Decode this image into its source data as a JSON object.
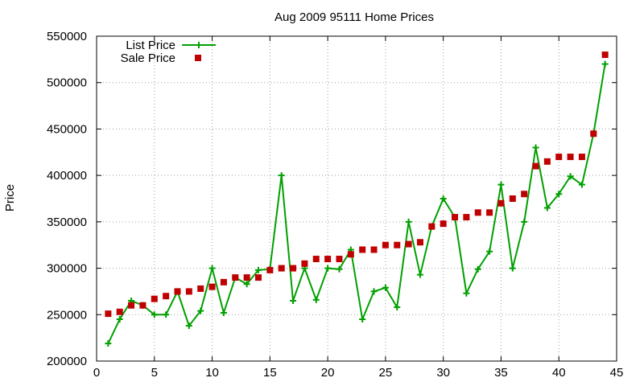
{
  "chart_data": {
    "type": "line",
    "title": "Aug 2009 95111 Home Prices",
    "xlabel": "",
    "ylabel": "Price",
    "xlim": [
      0,
      45
    ],
    "ylim": [
      200000,
      550000
    ],
    "xticks": [
      0,
      5,
      10,
      15,
      20,
      25,
      30,
      35,
      40,
      45
    ],
    "yticks": [
      200000,
      250000,
      300000,
      350000,
      400000,
      450000,
      500000,
      550000
    ],
    "grid": true,
    "legend": "top-left",
    "series": [
      {
        "name": "List Price",
        "style": "line+cross",
        "color": "#00a000",
        "x": [
          1,
          2,
          3,
          4,
          5,
          6,
          7,
          8,
          9,
          10,
          11,
          12,
          13,
          14,
          15,
          16,
          17,
          18,
          19,
          20,
          21,
          22,
          23,
          24,
          25,
          26,
          27,
          28,
          29,
          30,
          31,
          32,
          33,
          34,
          35,
          36,
          37,
          38,
          39,
          40,
          41,
          42,
          43,
          44
        ],
        "values": [
          219000,
          245000,
          265000,
          260000,
          250000,
          250000,
          275000,
          238000,
          254000,
          300000,
          252000,
          290000,
          283000,
          298000,
          299000,
          400000,
          265000,
          300000,
          266000,
          300000,
          299000,
          320000,
          245000,
          275000,
          279000,
          258000,
          350000,
          293000,
          345000,
          375000,
          355000,
          273000,
          299000,
          318000,
          390000,
          300000,
          350000,
          430000,
          365000,
          380000,
          399000,
          390000,
          445000,
          520000
        ]
      },
      {
        "name": "Sale Price",
        "style": "square",
        "color": "#c00000",
        "x": [
          1,
          2,
          3,
          4,
          5,
          6,
          7,
          8,
          9,
          10,
          11,
          12,
          13,
          14,
          15,
          16,
          17,
          18,
          19,
          20,
          21,
          22,
          23,
          24,
          25,
          26,
          27,
          28,
          29,
          30,
          31,
          32,
          33,
          34,
          35,
          36,
          37,
          38,
          39,
          40,
          41,
          42,
          43,
          44
        ],
        "values": [
          251000,
          253000,
          260000,
          260000,
          267000,
          270000,
          275000,
          275000,
          278000,
          280000,
          285000,
          290000,
          290000,
          290000,
          298000,
          300000,
          300000,
          305000,
          310000,
          310000,
          310000,
          315000,
          320000,
          320000,
          325000,
          325000,
          326000,
          328000,
          345000,
          348000,
          355000,
          355000,
          360000,
          360000,
          370000,
          375000,
          380000,
          410000,
          415000,
          420000,
          420000,
          420000,
          445000,
          530000
        ]
      }
    ]
  }
}
